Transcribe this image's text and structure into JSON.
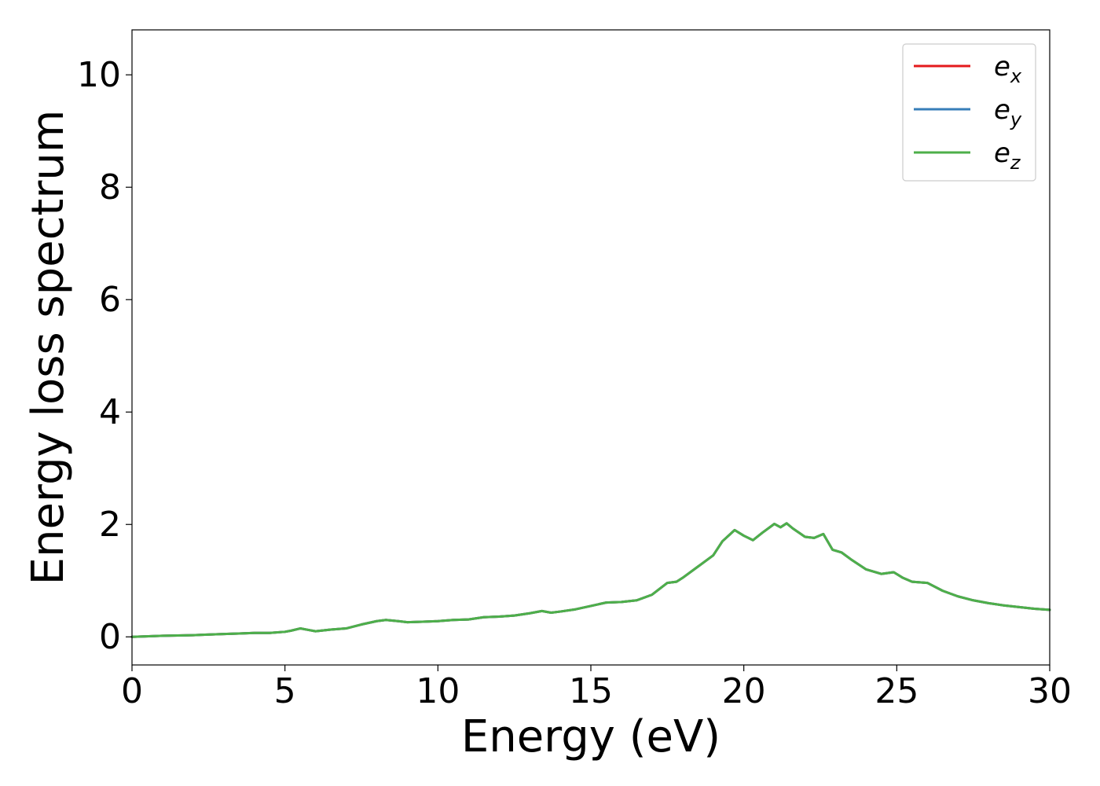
{
  "chart_data": {
    "type": "line",
    "title": "",
    "xlabel": "Energy (eV)",
    "ylabel": "Energy loss spectrum",
    "xlim": [
      0,
      30
    ],
    "ylim": [
      -0.5,
      10.8
    ],
    "xticks": [
      0,
      5,
      10,
      15,
      20,
      25,
      30
    ],
    "yticks": [
      0,
      2,
      4,
      6,
      8,
      10
    ],
    "grid": false,
    "legend_position": "top-right",
    "legend": [
      {
        "base": "e",
        "sub": "x",
        "color": "#e41a1c"
      },
      {
        "base": "e",
        "sub": "y",
        "color": "#377eb8"
      },
      {
        "base": "e",
        "sub": "z",
        "color": "#4daf4a"
      }
    ],
    "x": [
      0,
      1,
      2,
      3,
      3.5,
      4,
      4.5,
      5,
      5.2,
      5.5,
      5.8,
      6.0,
      6.5,
      7.0,
      7.5,
      8.0,
      8.3,
      8.7,
      9.0,
      9.5,
      10.0,
      10.5,
      11.0,
      11.5,
      12.0,
      12.5,
      13.0,
      13.4,
      13.7,
      14.0,
      14.5,
      15.0,
      15.5,
      16.0,
      16.5,
      17.0,
      17.5,
      17.8,
      18.0,
      18.5,
      19.0,
      19.3,
      19.7,
      20.0,
      20.3,
      20.6,
      21.0,
      21.2,
      21.4,
      21.6,
      22.0,
      22.3,
      22.6,
      22.9,
      23.2,
      23.5,
      24.0,
      24.5,
      24.9,
      25.2,
      25.5,
      26.0,
      26.5,
      27.0,
      27.5,
      28.0,
      28.5,
      29.0,
      29.5,
      30.0
    ],
    "series": [
      {
        "name": "e_x",
        "color": "#e41a1c",
        "values": [
          0.0,
          0.02,
          0.03,
          0.05,
          0.06,
          0.07,
          0.07,
          0.09,
          0.11,
          0.15,
          0.12,
          0.1,
          0.13,
          0.15,
          0.22,
          0.28,
          0.3,
          0.28,
          0.26,
          0.27,
          0.28,
          0.3,
          0.31,
          0.35,
          0.36,
          0.38,
          0.42,
          0.46,
          0.43,
          0.45,
          0.49,
          0.55,
          0.61,
          0.62,
          0.65,
          0.75,
          0.96,
          0.98,
          1.05,
          1.25,
          1.45,
          1.7,
          1.9,
          1.8,
          1.72,
          1.85,
          2.01,
          1.95,
          2.02,
          1.93,
          1.78,
          1.76,
          1.83,
          1.55,
          1.5,
          1.38,
          1.2,
          1.12,
          1.15,
          1.05,
          0.98,
          0.96,
          0.82,
          0.72,
          0.65,
          0.6,
          0.56,
          0.53,
          0.5,
          0.48
        ]
      },
      {
        "name": "e_y",
        "color": "#377eb8",
        "values": [
          0.0,
          0.02,
          0.03,
          0.05,
          0.06,
          0.07,
          0.07,
          0.09,
          0.11,
          0.15,
          0.12,
          0.1,
          0.13,
          0.15,
          0.22,
          0.28,
          0.3,
          0.28,
          0.26,
          0.27,
          0.28,
          0.3,
          0.31,
          0.35,
          0.36,
          0.38,
          0.42,
          0.46,
          0.43,
          0.45,
          0.49,
          0.55,
          0.61,
          0.62,
          0.65,
          0.75,
          0.96,
          0.98,
          1.05,
          1.25,
          1.45,
          1.7,
          1.9,
          1.8,
          1.72,
          1.85,
          2.01,
          1.95,
          2.02,
          1.93,
          1.78,
          1.76,
          1.83,
          1.55,
          1.5,
          1.38,
          1.2,
          1.12,
          1.15,
          1.05,
          0.98,
          0.96,
          0.82,
          0.72,
          0.65,
          0.6,
          0.56,
          0.53,
          0.5,
          0.48
        ]
      },
      {
        "name": "e_z",
        "color": "#4daf4a",
        "values": [
          0.0,
          0.02,
          0.03,
          0.05,
          0.06,
          0.07,
          0.07,
          0.09,
          0.11,
          0.15,
          0.12,
          0.1,
          0.13,
          0.15,
          0.22,
          0.28,
          0.3,
          0.28,
          0.26,
          0.27,
          0.28,
          0.3,
          0.31,
          0.35,
          0.36,
          0.38,
          0.42,
          0.46,
          0.43,
          0.45,
          0.49,
          0.55,
          0.61,
          0.62,
          0.65,
          0.75,
          0.96,
          0.98,
          1.05,
          1.25,
          1.45,
          1.7,
          1.9,
          1.8,
          1.72,
          1.85,
          2.01,
          1.95,
          2.02,
          1.93,
          1.78,
          1.76,
          1.83,
          1.55,
          1.5,
          1.38,
          1.2,
          1.12,
          1.15,
          1.05,
          0.98,
          0.96,
          0.82,
          0.72,
          0.65,
          0.6,
          0.56,
          0.53,
          0.5,
          0.48
        ]
      }
    ]
  }
}
